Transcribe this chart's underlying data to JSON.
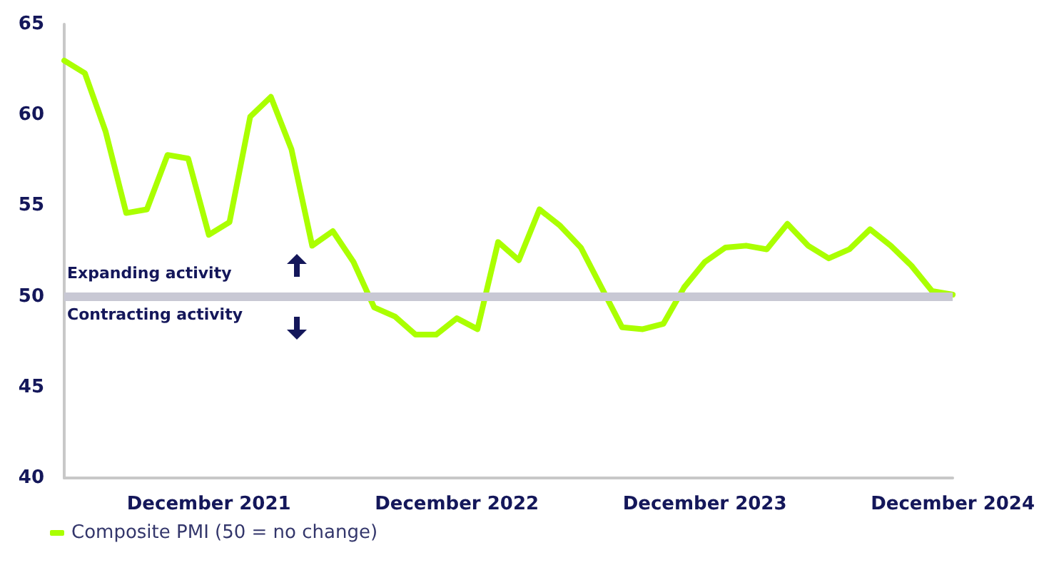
{
  "chart_data": {
    "type": "line",
    "categories": [
      null,
      null,
      null,
      null,
      null,
      null,
      null,
      "December 2021",
      null,
      null,
      null,
      null,
      null,
      null,
      null,
      null,
      null,
      null,
      null,
      "December 2022",
      null,
      null,
      null,
      null,
      null,
      null,
      null,
      null,
      null,
      null,
      null,
      "December 2023",
      null,
      null,
      null,
      null,
      null,
      null,
      null,
      null,
      null,
      null,
      null,
      "December 2024"
    ],
    "series": [
      {
        "name": "Composite PMI (50 = no change)",
        "color": "#aaff00",
        "values": [
          63.0,
          62.3,
          59.1,
          54.6,
          54.8,
          57.8,
          57.6,
          53.4,
          54.1,
          59.9,
          61.0,
          58.1,
          52.8,
          53.6,
          51.9,
          49.4,
          48.9,
          47.9,
          47.9,
          48.8,
          48.2,
          53.0,
          52.0,
          54.8,
          53.9,
          52.7,
          50.5,
          48.3,
          48.2,
          48.5,
          50.5,
          51.9,
          52.7,
          52.8,
          52.6,
          54.0,
          52.8,
          52.1,
          52.6,
          53.7,
          52.8,
          51.7,
          50.3,
          50.1
        ]
      }
    ],
    "ylim": [
      40,
      65
    ],
    "yticks": [
      40,
      45,
      50,
      55,
      60,
      65
    ],
    "ref_lines": [
      {
        "axis": "y",
        "value": 50,
        "color": "#c8c8d4"
      }
    ],
    "annotations": [
      "Expanding activity",
      "Contracting activity"
    ],
    "grid": false,
    "legend": "bottom left",
    "marker": "none",
    "line_style": "solid"
  }
}
